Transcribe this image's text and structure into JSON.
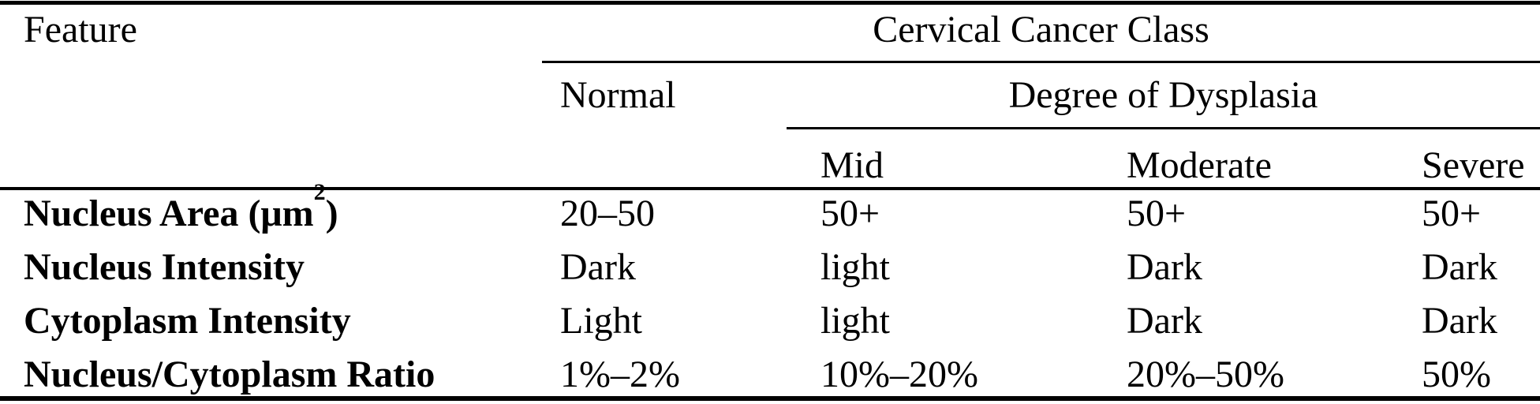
{
  "page": {
    "background_color": "#ffffff",
    "text_color": "#000000"
  },
  "table": {
    "header": {
      "feature": "Feature",
      "cancer_class": "Cervical Cancer Class",
      "normal": "Normal",
      "dysplasia": "Degree of Dysplasia",
      "levels": [
        "Mid",
        "Moderate",
        "Severe"
      ]
    },
    "column_headers": [
      "Feature",
      "Normal",
      "Mid",
      "Moderate",
      "Severe"
    ],
    "rows": [
      {
        "label_main": "Nucleus Area (μm",
        "label_sup": "2",
        "label_close": ")",
        "values": [
          "20–50",
          "50+",
          "50+",
          "50+"
        ]
      },
      {
        "label_main": "Nucleus Intensity",
        "label_sup": "",
        "label_close": "",
        "values": [
          "Dark",
          "light",
          "Dark",
          "Dark"
        ]
      },
      {
        "label_main": "Cytoplasm Intensity",
        "label_sup": "",
        "label_close": "",
        "values": [
          "Light",
          "light",
          "Dark",
          "Dark"
        ]
      },
      {
        "label_main": "Nucleus/Cytoplasm Ratio",
        "label_sup": "",
        "label_close": "",
        "values": [
          "1%–2%",
          "10%–20%",
          "20%–50%",
          "50%"
        ]
      }
    ]
  }
}
